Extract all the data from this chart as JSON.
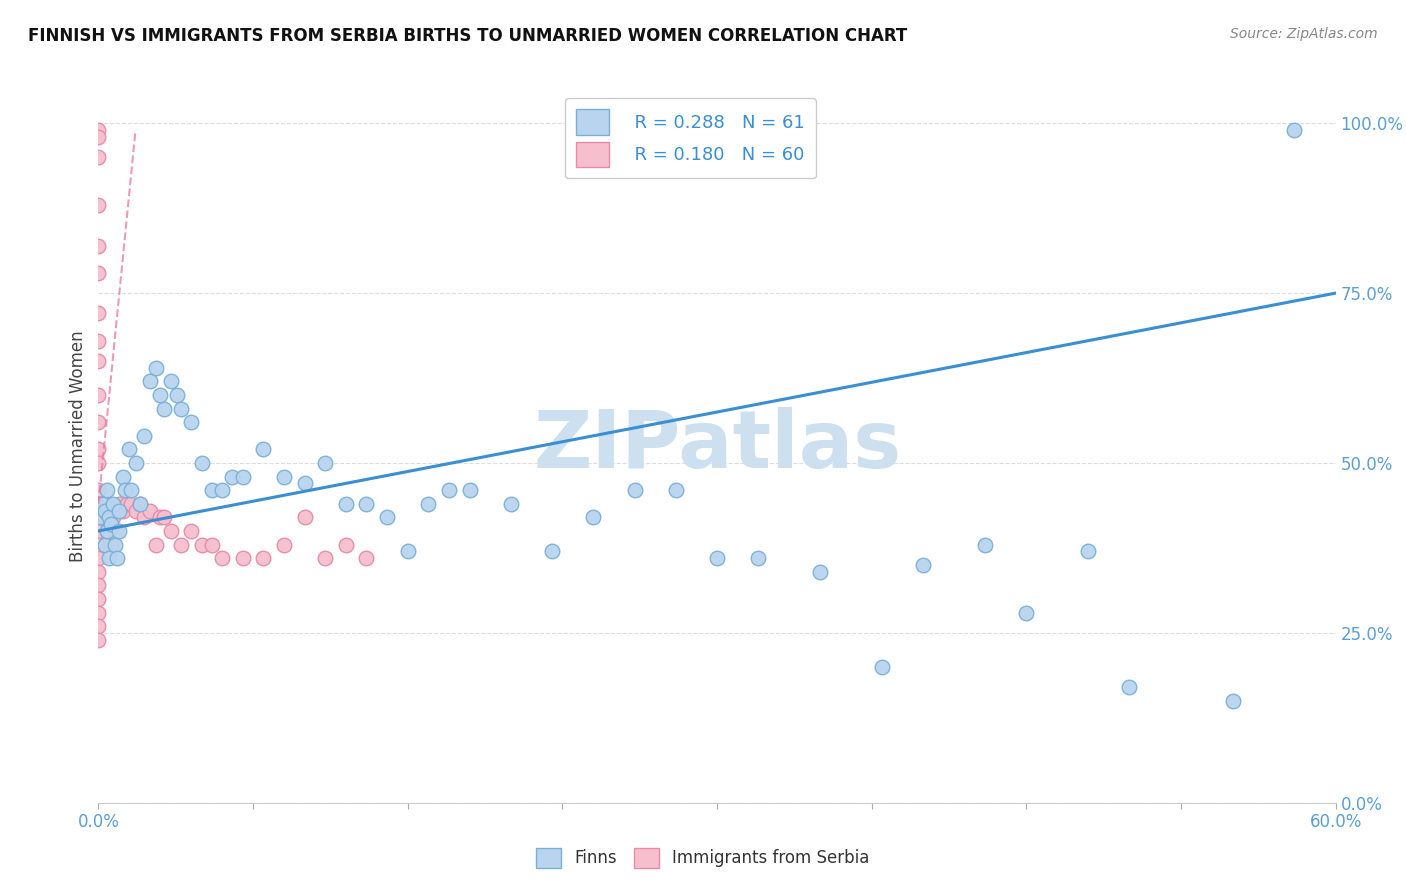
{
  "title": "FINNISH VS IMMIGRANTS FROM SERBIA BIRTHS TO UNMARRIED WOMEN CORRELATION CHART",
  "source": "Source: ZipAtlas.com",
  "ylabel": "Births to Unmarried Women",
  "ylabel_right_ticks": [
    0.0,
    0.25,
    0.5,
    0.75,
    1.0
  ],
  "ylabel_right_labels": [
    "0.0%",
    "25.0%",
    "50.0%",
    "75.0%",
    "100.0%"
  ],
  "xmin": 0.0,
  "xmax": 0.6,
  "ymin": 0.0,
  "ymax": 1.05,
  "finns_color": "#b8d4ee",
  "finns_edge": "#7ab0d8",
  "serbia_color": "#f5bfce",
  "serbia_edge": "#e88aa8",
  "trend_blue": "#3a8fd4",
  "trend_pink": "#e878a0",
  "watermark_text": "ZIPatlas",
  "watermark_color": "#cce0f0",
  "legend_blue_R": "0.288",
  "legend_blue_N": "61",
  "legend_pink_R": "0.180",
  "legend_pink_N": "60",
  "finns_x": [
    0.001,
    0.002,
    0.003,
    0.003,
    0.004,
    0.004,
    0.005,
    0.005,
    0.006,
    0.007,
    0.008,
    0.009,
    0.01,
    0.01,
    0.012,
    0.013,
    0.015,
    0.016,
    0.018,
    0.02,
    0.022,
    0.025,
    0.028,
    0.03,
    0.032,
    0.035,
    0.038,
    0.04,
    0.045,
    0.05,
    0.055,
    0.06,
    0.065,
    0.07,
    0.08,
    0.09,
    0.1,
    0.11,
    0.12,
    0.13,
    0.14,
    0.15,
    0.16,
    0.17,
    0.18,
    0.2,
    0.22,
    0.24,
    0.26,
    0.28,
    0.3,
    0.32,
    0.35,
    0.38,
    0.4,
    0.43,
    0.45,
    0.48,
    0.5,
    0.55,
    0.58
  ],
  "finns_y": [
    0.42,
    0.44,
    0.43,
    0.38,
    0.46,
    0.4,
    0.42,
    0.36,
    0.41,
    0.44,
    0.38,
    0.36,
    0.43,
    0.4,
    0.48,
    0.46,
    0.52,
    0.46,
    0.5,
    0.44,
    0.54,
    0.62,
    0.64,
    0.6,
    0.58,
    0.62,
    0.6,
    0.58,
    0.56,
    0.5,
    0.46,
    0.46,
    0.48,
    0.48,
    0.52,
    0.48,
    0.47,
    0.5,
    0.44,
    0.44,
    0.42,
    0.37,
    0.44,
    0.46,
    0.46,
    0.44,
    0.37,
    0.42,
    0.46,
    0.46,
    0.36,
    0.36,
    0.34,
    0.2,
    0.35,
    0.38,
    0.28,
    0.37,
    0.17,
    0.15,
    0.99
  ],
  "serbia_x": [
    0.0,
    0.0,
    0.0,
    0.0,
    0.0,
    0.0,
    0.0,
    0.0,
    0.0,
    0.0,
    0.0,
    0.0,
    0.0,
    0.0,
    0.0,
    0.0,
    0.0,
    0.0,
    0.0,
    0.0,
    0.0,
    0.0,
    0.0,
    0.0,
    0.0,
    0.001,
    0.001,
    0.002,
    0.002,
    0.003,
    0.004,
    0.004,
    0.005,
    0.006,
    0.007,
    0.008,
    0.01,
    0.012,
    0.014,
    0.016,
    0.018,
    0.02,
    0.022,
    0.025,
    0.028,
    0.03,
    0.032,
    0.035,
    0.04,
    0.045,
    0.05,
    0.055,
    0.06,
    0.07,
    0.08,
    0.09,
    0.1,
    0.11,
    0.12,
    0.13
  ],
  "serbia_y": [
    0.99,
    0.98,
    0.95,
    0.88,
    0.82,
    0.78,
    0.72,
    0.68,
    0.65,
    0.6,
    0.56,
    0.52,
    0.5,
    0.46,
    0.44,
    0.42,
    0.4,
    0.38,
    0.36,
    0.34,
    0.32,
    0.3,
    0.28,
    0.26,
    0.24,
    0.44,
    0.42,
    0.44,
    0.42,
    0.42,
    0.44,
    0.4,
    0.4,
    0.38,
    0.42,
    0.4,
    0.44,
    0.43,
    0.44,
    0.44,
    0.43,
    0.44,
    0.42,
    0.43,
    0.38,
    0.42,
    0.42,
    0.4,
    0.38,
    0.4,
    0.38,
    0.38,
    0.36,
    0.36,
    0.36,
    0.38,
    0.42,
    0.36,
    0.38,
    0.36
  ],
  "blue_trend_x0": 0.0,
  "blue_trend_y0": 0.4,
  "blue_trend_x1": 0.6,
  "blue_trend_y1": 0.75,
  "pink_trend_x0": 0.0,
  "pink_trend_y0": 0.44,
  "pink_trend_x1": 0.018,
  "pink_trend_y1": 0.99
}
